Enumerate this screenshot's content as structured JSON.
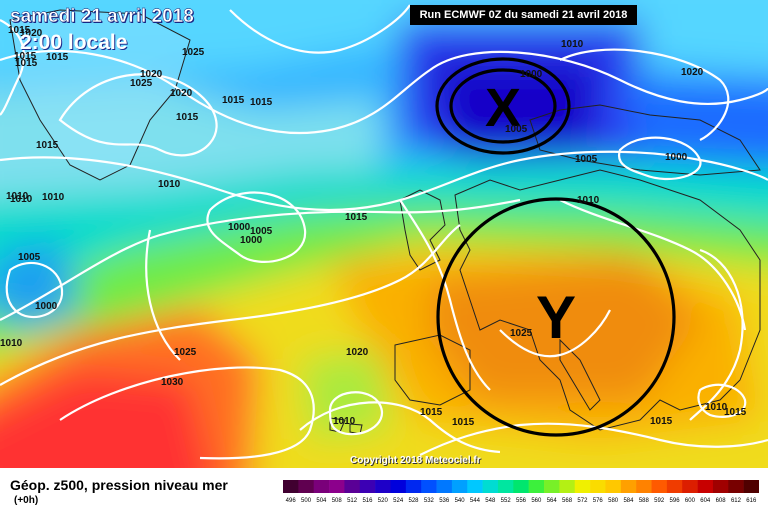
{
  "header": {
    "date": "samedi 21 avril 2018",
    "time": "2:00 locale",
    "run": "Run ECMWF 0Z du samedi 21 avril 2018"
  },
  "footer": {
    "title": "Géop. z500, pression niveau mer",
    "subtitle": "(+0h)",
    "copyright": "Copyright 2018 Meteociel.fr"
  },
  "isobar_labels": [
    "1015",
    "1015",
    "1025",
    "1020",
    "1025",
    "1020",
    "1015",
    "1015",
    "1015",
    "1010",
    "1015",
    "1000",
    "1005",
    "1005",
    "1000",
    "1000",
    "1010",
    "1015",
    "1010",
    "1020",
    "1025",
    "1030",
    "1025",
    "1010",
    "1015",
    "1015",
    "1015",
    "1005",
    "1010",
    "1010",
    "1000",
    "1010",
    "1000",
    "1005",
    "1010",
    "1015",
    "1020",
    "1020",
    "1015",
    "1010",
    "1015"
  ],
  "systems": [
    {
      "label": "X"
    },
    {
      "label": "Y"
    }
  ],
  "scale": {
    "values": [
      "496",
      "500",
      "504",
      "508",
      "512",
      "516",
      "520",
      "524",
      "528",
      "532",
      "536",
      "540",
      "544",
      "548",
      "552",
      "556",
      "560",
      "564",
      "568",
      "572",
      "576",
      "580",
      "584",
      "588",
      "592",
      "596",
      "600",
      "604",
      "608",
      "612",
      "616"
    ],
    "colors": [
      "#400030",
      "#600050",
      "#7a007a",
      "#8c008c",
      "#5a0096",
      "#3c00b4",
      "#1e00c8",
      "#0000dc",
      "#0028f0",
      "#0050ff",
      "#0078ff",
      "#00a0ff",
      "#00c8ff",
      "#00dcd2",
      "#00e6a0",
      "#00e66e",
      "#3cf03c",
      "#78f028",
      "#b4f014",
      "#f0f000",
      "#fadc00",
      "#ffc800",
      "#ffa000",
      "#ff8200",
      "#ff5a00",
      "#f03c00",
      "#dc1e00",
      "#c80000",
      "#a00000",
      "#780000",
      "#500000"
    ]
  }
}
